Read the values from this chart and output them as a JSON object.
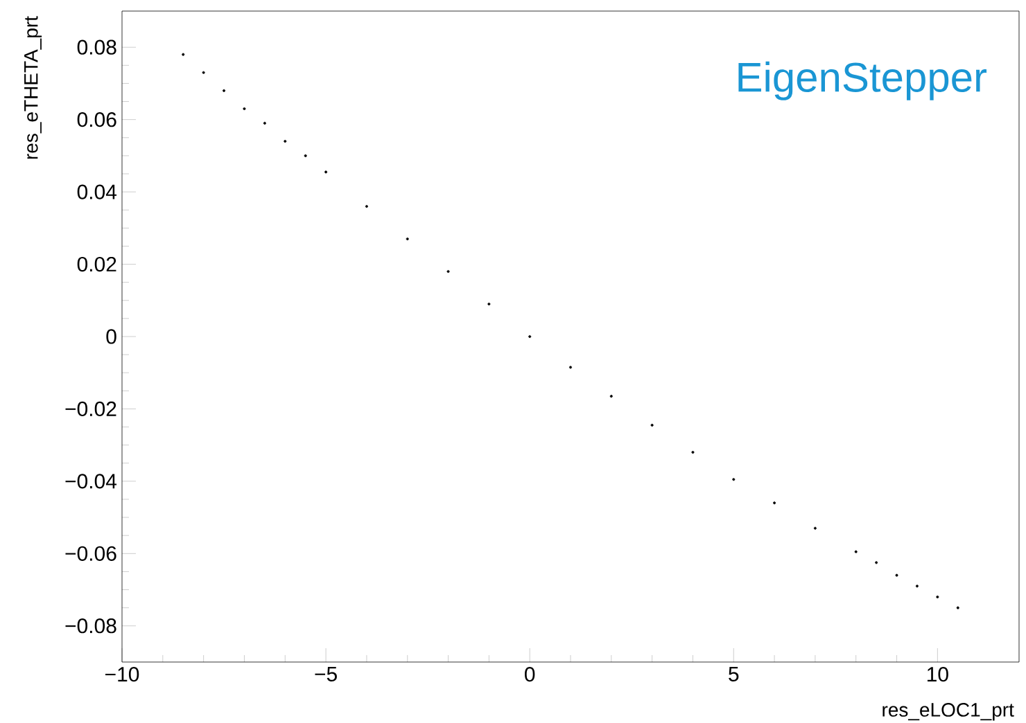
{
  "chart_data": {
    "type": "scatter",
    "xlabel": "res_eLOC1_prt",
    "ylabel": "res_eTHETA_prt",
    "annotations": [
      "EigenStepper"
    ],
    "x": [
      -8.5,
      -8.0,
      -7.5,
      -7.0,
      -6.5,
      -6.0,
      -5.5,
      -5.0,
      -4.0,
      -3.0,
      -2.0,
      -1.0,
      0.0,
      1.0,
      2.0,
      3.0,
      4.0,
      5.0,
      6.0,
      7.0,
      8.0,
      8.5,
      9.0,
      9.5,
      10.0,
      10.5
    ],
    "values": [
      0.078,
      0.073,
      0.068,
      0.063,
      0.059,
      0.054,
      0.05,
      0.0455,
      0.036,
      0.027,
      0.018,
      0.009,
      0.0,
      -0.0085,
      -0.0165,
      -0.0245,
      -0.032,
      -0.0395,
      -0.046,
      -0.053,
      -0.0595,
      -0.0625,
      -0.066,
      -0.069,
      -0.072,
      -0.075
    ],
    "color": "#000000",
    "xlim": [
      -10,
      12
    ],
    "ylim": [
      -0.09,
      0.09
    ],
    "xticks": [
      {
        "value": -10,
        "label": "−10"
      },
      {
        "value": -5,
        "label": "−5"
      },
      0,
      5,
      10
    ],
    "yticks": [
      {
        "value": -0.08,
        "label": "−0.08"
      },
      {
        "value": -0.06,
        "label": "−0.06"
      },
      {
        "value": -0.04,
        "label": "−0.04"
      },
      {
        "value": -0.02,
        "label": "−0.02"
      },
      0,
      0.02,
      0.04,
      0.06,
      0.08
    ],
    "grid": false
  }
}
